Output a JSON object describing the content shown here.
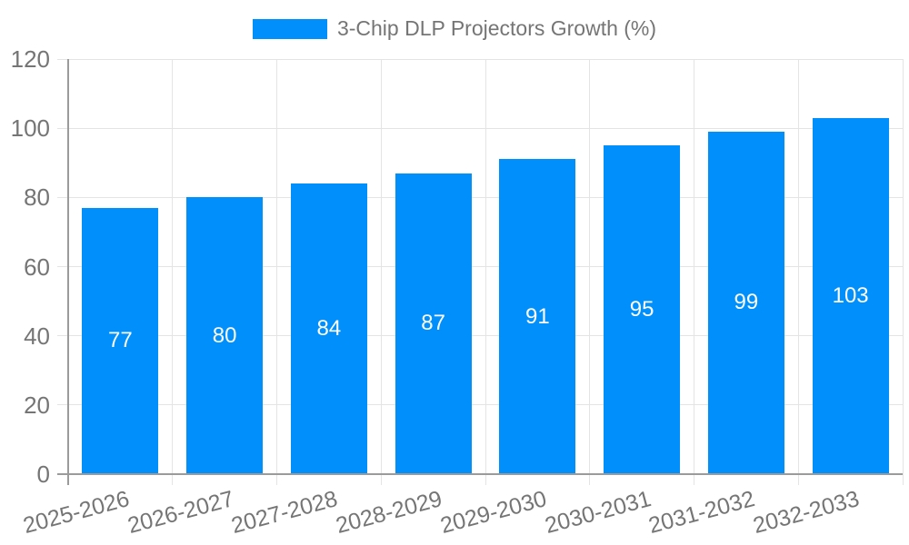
{
  "legend": {
    "label": "3-Chip DLP Projectors Growth (%)"
  },
  "chart_data": {
    "type": "bar",
    "title": "",
    "legend": "3-Chip DLP Projectors Growth (%)",
    "legend_position": "top-center",
    "categories": [
      "2025-2026",
      "2026-2027",
      "2027-2028",
      "2028-2029",
      "2029-2030",
      "2030-2031",
      "2031-2032",
      "2032-2033"
    ],
    "values": [
      77,
      80,
      84,
      87,
      91,
      95,
      99,
      103
    ],
    "xlabel": "",
    "ylabel": "",
    "ylim": [
      0,
      120
    ],
    "yticks": [
      0,
      20,
      40,
      60,
      80,
      100,
      120
    ],
    "grid": true,
    "value_labels": "inside-bar-centered",
    "xlabel_rotation_deg": -15
  },
  "colors": {
    "bar": "#008FFB",
    "bar_value_text": "#FFFFFF",
    "axis_text": "#757575",
    "grid_line": "#E4E4E4",
    "axis_line": "#9B9B9B",
    "background": "#FFFFFF"
  }
}
